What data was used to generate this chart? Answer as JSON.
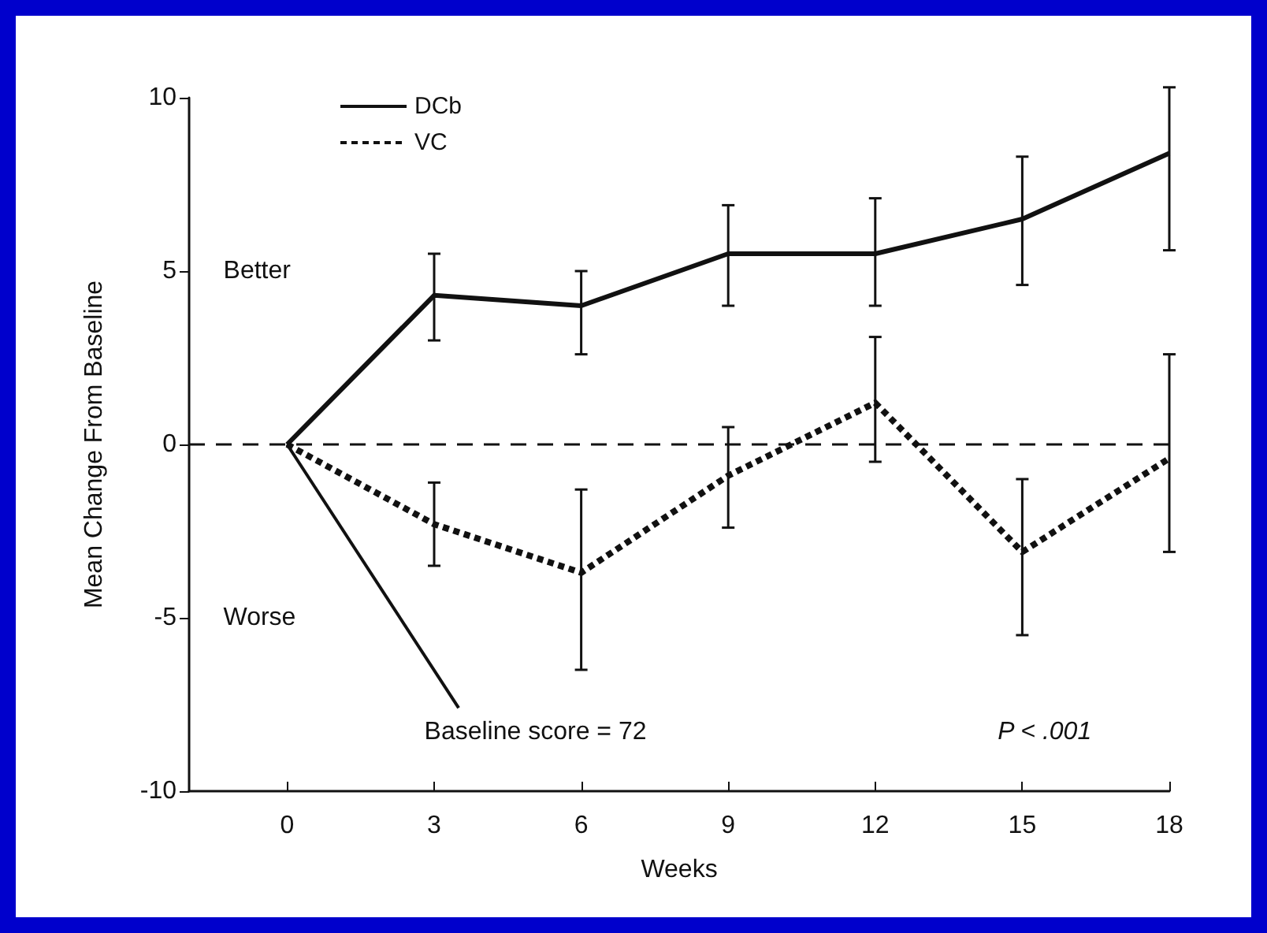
{
  "chart_data": {
    "type": "line",
    "xlabel": "Weeks",
    "ylabel": "Mean Change From Baseline",
    "x": [
      0,
      3,
      6,
      9,
      12,
      15,
      18
    ],
    "series": [
      {
        "name": "DCb",
        "color": "#111111",
        "line_style": "solid",
        "values": [
          0,
          4.3,
          4.0,
          5.5,
          5.5,
          6.5,
          8.4
        ],
        "errors": [
          null,
          [
            3.0,
            5.5
          ],
          [
            2.6,
            5.0
          ],
          [
            4.0,
            6.9
          ],
          [
            4.0,
            7.1
          ],
          [
            4.6,
            8.3
          ],
          [
            5.6,
            10.3
          ]
        ]
      },
      {
        "name": "VC",
        "color": "#111111",
        "line_style": "dotted",
        "values": [
          0,
          -2.3,
          -3.7,
          -0.9,
          1.2,
          -3.1,
          -0.4
        ],
        "errors": [
          null,
          [
            -3.5,
            -1.1
          ],
          [
            -6.5,
            -1.3
          ],
          [
            -2.4,
            0.5
          ],
          [
            -0.5,
            3.1
          ],
          [
            -5.5,
            -1.0
          ],
          [
            -3.1,
            2.6
          ]
        ]
      }
    ],
    "xlim": [
      -2,
      18
    ],
    "xticks": [
      0,
      3,
      6,
      9,
      12,
      15,
      18
    ],
    "ylim": [
      -10,
      10
    ],
    "yticks": [
      -10,
      -5,
      0,
      5,
      10
    ],
    "ref_lines": [
      {
        "axis": "y",
        "value": 0,
        "line_style": "dashed",
        "color": "#111111"
      }
    ],
    "annotations": [
      "Better",
      "Worse",
      {
        "text": "Baseline score = 72",
        "x": 0,
        "y": 0
      },
      "P < .001"
    ],
    "grid": false,
    "legend": "top left",
    "marker": "none"
  }
}
